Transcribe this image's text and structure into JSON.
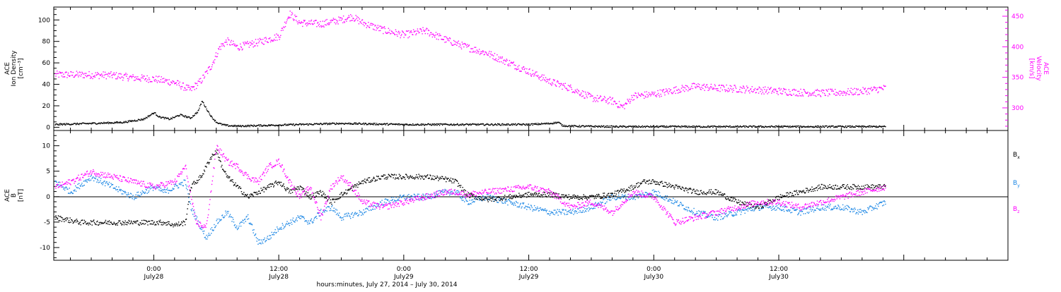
{
  "chart_data": [
    {
      "type": "scatter",
      "ylabel_lines": [
        "ACE",
        "Ion Density",
        "[cm⁻³]"
      ],
      "ylim": [
        -3,
        112
      ],
      "yticks": [
        0,
        20,
        40,
        60,
        80,
        100
      ],
      "y2label_lines": [
        "ACE",
        "Velocity",
        "[km/s]"
      ],
      "y2lim": [
        263,
        465
      ],
      "y2ticks": [
        300,
        350,
        400,
        450
      ],
      "grid": false,
      "series": [
        {
          "name": "",
          "axis": "left",
          "color": "#000000",
          "x": [
            -9.5,
            -6,
            -3,
            -1,
            0,
            0.5,
            1.5,
            2.5,
            3.5,
            4.2,
            4.6,
            5,
            5.5,
            6,
            6.5,
            7,
            8,
            10,
            14,
            18,
            24,
            30,
            36,
            38,
            38.8,
            39.2,
            40,
            44,
            48,
            56,
            60,
            64,
            68,
            70.2
          ],
          "y": [
            3,
            4,
            5,
            8,
            14,
            10,
            8,
            12,
            9,
            15,
            25,
            18,
            10,
            5,
            3,
            2,
            1.5,
            2,
            3,
            4,
            3,
            3,
            3,
            4,
            5,
            2,
            1.5,
            1,
            1,
            1,
            1,
            1,
            1,
            1
          ]
        },
        {
          "name": "",
          "axis": "right",
          "color": "#ff00ff",
          "x": [
            -9.5,
            -7,
            -4,
            -2,
            0,
            2,
            3.5,
            4.5,
            5.5,
            6.3,
            7,
            8,
            10,
            12,
            13,
            14,
            16,
            18,
            19,
            20,
            22,
            24,
            26,
            28,
            30,
            32,
            34,
            36,
            37,
            38,
            39,
            40,
            42,
            44,
            45,
            46,
            48,
            50,
            52,
            54,
            56,
            58,
            60,
            62,
            64,
            66,
            68,
            70.2
          ],
          "y": [
            355,
            355,
            354,
            350,
            348,
            342,
            330,
            345,
            370,
            400,
            410,
            400,
            408,
            418,
            455,
            440,
            438,
            445,
            450,
            440,
            428,
            420,
            427,
            412,
            400,
            390,
            375,
            360,
            352,
            344,
            338,
            333,
            317,
            312,
            302,
            320,
            323,
            330,
            336,
            333,
            332,
            330,
            328,
            326,
            325,
            326,
            328,
            333
          ]
        }
      ]
    },
    {
      "type": "scatter",
      "ylabel_lines": [
        "ACE",
        "B",
        "[nT]"
      ],
      "ylim": [
        -12.5,
        13
      ],
      "yticks": [
        -10,
        -5,
        0,
        5,
        10
      ],
      "grid": false,
      "zero_line": true,
      "series": [
        {
          "name": "Bx",
          "label_main": "B",
          "label_sub": "x",
          "color": "#000000",
          "x": [
            -9.5,
            -7,
            -5,
            -3,
            -1,
            0,
            1,
            2,
            3,
            3.5,
            4.5,
            5,
            5.5,
            6,
            6.5,
            7,
            8,
            9,
            10,
            11,
            12,
            13,
            14,
            15,
            16,
            17,
            18,
            20,
            22,
            24,
            26,
            28,
            29,
            30,
            32,
            34,
            36,
            38,
            40,
            42,
            44,
            46,
            47,
            48,
            50,
            52,
            54,
            56,
            58,
            60,
            62,
            64,
            66,
            68,
            70.2
          ],
          "y": [
            -4,
            -5,
            -5,
            -5,
            -5,
            -5,
            -5,
            -5.5,
            -5,
            2,
            4,
            6,
            8,
            9,
            6,
            4,
            2,
            0,
            1,
            2,
            3,
            1,
            2,
            0,
            1,
            -1,
            0.5,
            3,
            4,
            4,
            4,
            3.5,
            3,
            0.5,
            -0.5,
            0,
            0.5,
            0.5,
            0,
            0,
            0.5,
            2,
            3,
            3,
            2,
            1,
            1,
            -1,
            -2,
            0,
            1,
            2,
            2,
            2,
            2
          ]
        },
        {
          "name": "By",
          "label_main": "B",
          "label_sub": "y",
          "color": "#1e88e5",
          "x": [
            -9.5,
            -8,
            -6,
            -4,
            -2,
            0,
            1,
            2,
            3,
            3.5,
            4.5,
            5,
            6,
            7,
            8,
            9,
            10,
            11,
            12,
            13,
            14,
            15,
            16,
            17,
            18,
            20,
            22,
            24,
            26,
            28,
            29,
            30,
            32,
            34,
            36,
            38,
            40,
            42,
            44,
            46,
            48,
            50,
            52,
            54,
            56,
            58,
            60,
            62,
            64,
            66,
            68,
            70.2
          ],
          "y": [
            3,
            1,
            4,
            2,
            0,
            2,
            1,
            2,
            3,
            -2,
            -6,
            -8,
            -5,
            -3,
            -6,
            -4,
            -9,
            -8,
            -6,
            -5,
            -4,
            -5,
            -3,
            -2,
            -4,
            -3,
            -1,
            0,
            0,
            1,
            1,
            -1,
            0,
            -1,
            -2,
            -3,
            -3,
            -2,
            0,
            0,
            1,
            -1,
            -3,
            -4,
            -3,
            -2,
            -2,
            -3,
            -2,
            -2,
            -3,
            -1
          ]
        },
        {
          "name": "Bz",
          "label_main": "B",
          "label_sub": "z",
          "color": "#ff00ff",
          "x": [
            -9.5,
            -8,
            -6,
            -4,
            -2,
            0,
            2,
            3,
            4,
            5,
            6,
            7,
            8,
            9,
            10,
            11,
            12,
            13,
            14,
            15,
            16,
            17,
            18,
            19,
            20,
            22,
            24,
            26,
            28,
            29,
            30,
            32,
            34,
            36,
            38,
            40,
            42,
            44,
            46,
            48,
            50,
            52,
            54,
            56,
            58,
            60,
            62,
            64,
            66,
            68,
            70.2
          ],
          "y": [
            2,
            3,
            5,
            4,
            3,
            2,
            3,
            6,
            -5,
            -6,
            10,
            7,
            6,
            4,
            3,
            6,
            7,
            3,
            0,
            2,
            -4,
            2,
            4,
            2,
            -1,
            -2,
            -1,
            0,
            1,
            1,
            0.5,
            1,
            1.5,
            2,
            1,
            -2,
            -1,
            -3,
            1,
            0,
            -5,
            -4,
            -3,
            -2,
            -1,
            -1,
            -2,
            -1,
            0,
            1,
            2
          ]
        }
      ]
    }
  ],
  "x_axis": {
    "xlim": [
      -9.6,
      82
    ],
    "major_ticks": [
      {
        "t": 0,
        "time": "0:00",
        "date": "July28"
      },
      {
        "t": 12,
        "time": "12:00",
        "date": "July28"
      },
      {
        "t": 24,
        "time": "0:00",
        "date": "July29"
      },
      {
        "t": 36,
        "time": "12:00",
        "date": "July29"
      },
      {
        "t": 48,
        "time": "0:00",
        "date": "July30"
      },
      {
        "t": 60,
        "time": "12:00",
        "date": "July30"
      }
    ],
    "minor_tick_step_hours": 2,
    "title": "hours:minutes, July 27, 2014 – July 30, 2014"
  },
  "colors": {
    "density": "#000000",
    "velocity": "#ff00ff",
    "axis": "#000000",
    "velocity_axis": "#e633e6"
  }
}
